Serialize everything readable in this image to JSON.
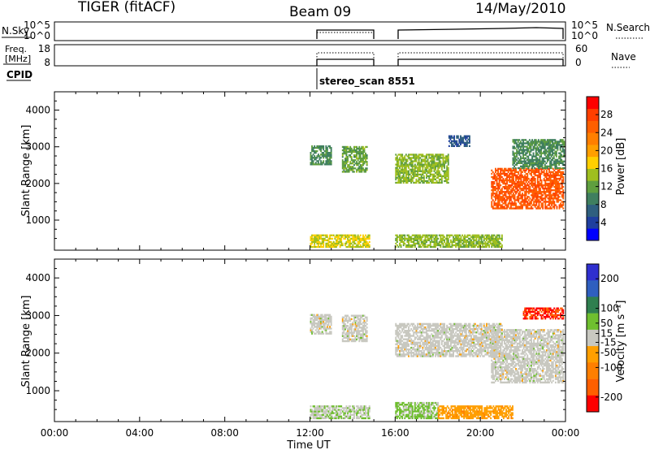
{
  "header": {
    "station": "TIGER (fitACF)",
    "beam": "Beam 09",
    "date": "14/May/2010"
  },
  "small_panels": {
    "nsky_label": "N.Sky",
    "nsearch_label": "N.Search",
    "noise_ticks_left": [
      "10^5",
      "10^0"
    ],
    "noise_ticks_right": [
      "10^5",
      "10^0"
    ],
    "freq_label_line1": "Freq.",
    "freq_label_line2": "[MHz]",
    "freq_ticks": [
      "18",
      "8"
    ],
    "nave_ticks": [
      "60",
      "0"
    ],
    "nave_label": "Nave",
    "cpid_label": "CPID",
    "cpid_value": "stereo_scan 8551"
  },
  "colors": {
    "power": [
      "#0000ff",
      "#1f3f9f",
      "#2f5f7f",
      "#3f7f5f",
      "#5f9f3f",
      "#9fbf1f",
      "#ffcf00",
      "#ff9f00",
      "#ff7f00",
      "#ff5f00",
      "#ff3f00",
      "#ff0000"
    ],
    "velocity": [
      "#2f2fcf",
      "#2f5fbf",
      "#2f7f4f",
      "#6fbf2f",
      "#c8c8c0",
      "#ff9f00",
      "#ff7f00",
      "#ff5f00",
      "#ff0000"
    ]
  },
  "chart_data": [
    {
      "type": "heatmap",
      "name": "power",
      "xlabel": "",
      "ylabel": "Slant Range [km]",
      "xlim": [
        0,
        24
      ],
      "ylim": [
        180,
        4500
      ],
      "yticks": [
        1000,
        2000,
        3000,
        4000
      ],
      "colorbar_label": "Power [dB]",
      "colorbar_ticks": [
        28,
        24,
        20,
        16,
        12,
        8,
        4
      ],
      "colorbar_range": [
        0,
        32
      ],
      "data_gaps_hours": [
        [
          0,
          12.0
        ],
        [
          14.8,
          16.0
        ]
      ],
      "regions": [
        {
          "t": [
            12.0,
            14.8
          ],
          "r": [
            250,
            600
          ],
          "level": 16
        },
        {
          "t": [
            12.0,
            13.0
          ],
          "r": [
            2500,
            3000
          ],
          "level": 10
        },
        {
          "t": [
            13.5,
            14.7
          ],
          "r": [
            2300,
            3000
          ],
          "level": 12
        },
        {
          "t": [
            16.0,
            21.0
          ],
          "r": [
            250,
            600
          ],
          "level": 14
        },
        {
          "t": [
            16.0,
            18.5
          ],
          "r": [
            2000,
            2800
          ],
          "level": 14
        },
        {
          "t": [
            18.5,
            19.5
          ],
          "r": [
            3000,
            3300
          ],
          "level": 6
        },
        {
          "t": [
            20.5,
            23.9
          ],
          "r": [
            1300,
            2400
          ],
          "level": 26
        },
        {
          "t": [
            21.5,
            23.9
          ],
          "r": [
            2400,
            3200
          ],
          "level": 10
        }
      ]
    },
    {
      "type": "heatmap",
      "name": "velocity",
      "xlabel": "Time UT",
      "ylabel": "Slant Range [km]",
      "xlim": [
        0,
        24
      ],
      "ylim": [
        180,
        4500
      ],
      "xticks": [
        "00:00",
        "04:00",
        "08:00",
        "12:00",
        "16:00",
        "20:00",
        "00:00"
      ],
      "yticks": [
        1000,
        2000,
        3000,
        4000
      ],
      "colorbar_label": "Velocity [m s⁻¹]",
      "colorbar_ticks": [
        200,
        100,
        50,
        15,
        -15,
        -50,
        -100,
        -200
      ],
      "colorbar_range": [
        -250,
        250
      ],
      "data_gaps_hours": [
        [
          0,
          12.0
        ],
        [
          14.8,
          16.0
        ]
      ],
      "regions": [
        {
          "t": [
            12.0,
            14.8
          ],
          "r": [
            250,
            600
          ],
          "level": 20
        },
        {
          "t": [
            12.0,
            13.0
          ],
          "r": [
            2500,
            3000
          ],
          "level": 0
        },
        {
          "t": [
            13.5,
            14.7
          ],
          "r": [
            2300,
            3000
          ],
          "level": 0
        },
        {
          "t": [
            16.0,
            18.0
          ],
          "r": [
            250,
            700
          ],
          "level": 40
        },
        {
          "t": [
            18.0,
            21.5
          ],
          "r": [
            250,
            600
          ],
          "level": -60
        },
        {
          "t": [
            16.0,
            21.0
          ],
          "r": [
            1900,
            2800
          ],
          "level": 0
        },
        {
          "t": [
            20.5,
            23.9
          ],
          "r": [
            1200,
            2600
          ],
          "level": 0
        },
        {
          "t": [
            22.0,
            23.9
          ],
          "r": [
            2900,
            3200
          ],
          "level": -200
        }
      ]
    }
  ]
}
